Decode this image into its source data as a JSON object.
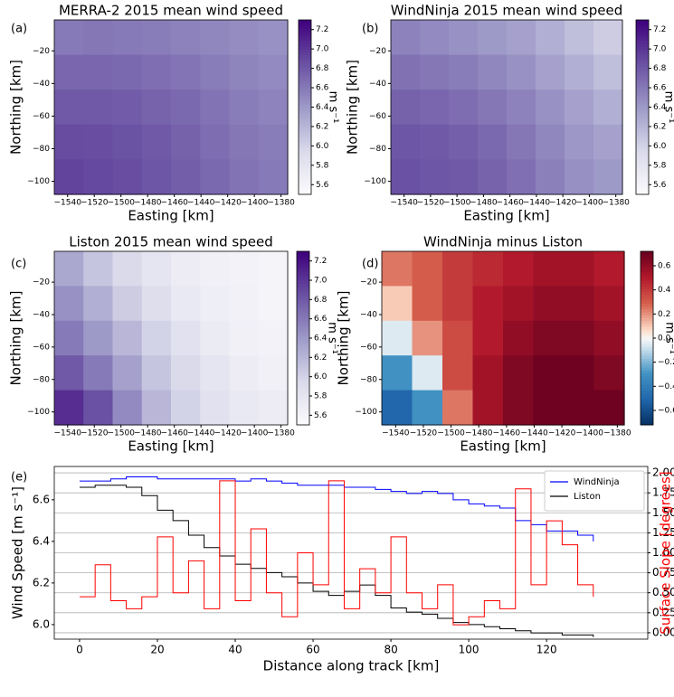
{
  "chart_data": [
    {
      "type": "heatmap",
      "panel_label": "(a)",
      "title": "MERRA-2 2015 mean wind speed",
      "x_label": "Easting [km]",
      "y_label": "Northing [km]",
      "xlim": [
        -1550,
        -1375
      ],
      "ylim": [
        -108,
        -1
      ],
      "xticks": [
        {
          "value": -1540,
          "label": "−1540"
        },
        {
          "value": -1520,
          "label": "−1520"
        },
        {
          "value": -1500,
          "label": "−1500"
        },
        {
          "value": -1480,
          "label": "−1480"
        },
        {
          "value": -1460,
          "label": "−1460"
        },
        {
          "value": -1440,
          "label": "−1440"
        },
        {
          "value": -1420,
          "label": "−1420"
        },
        {
          "value": -1400,
          "label": "−1400"
        },
        {
          "value": -1380,
          "label": "−1380"
        }
      ],
      "yticks": [
        {
          "value": -20,
          "label": "−20"
        },
        {
          "value": -40,
          "label": "−40"
        },
        {
          "value": -60,
          "label": "−60"
        },
        {
          "value": -80,
          "label": "−80"
        },
        {
          "value": -100,
          "label": "−100"
        }
      ],
      "colormap": "Purples",
      "zlim": [
        5.5,
        7.3
      ],
      "zticks": [
        5.6,
        5.8,
        {
          "value": 6,
          "label": "6.0"
        },
        6.2,
        6.4,
        6.6,
        6.8,
        {
          "value": 7,
          "label": "7.0"
        },
        7.2
      ],
      "colorbar_label": "m s⁻¹",
      "z": [
        [
          6.6,
          6.62,
          6.6,
          6.58,
          6.55,
          6.52,
          6.48,
          6.45
        ],
        [
          6.72,
          6.72,
          6.7,
          6.67,
          6.63,
          6.58,
          6.53,
          6.5
        ],
        [
          6.8,
          6.8,
          6.78,
          6.74,
          6.7,
          6.64,
          6.58,
          6.54
        ],
        [
          6.88,
          6.87,
          6.84,
          6.8,
          6.75,
          6.68,
          6.62,
          6.58
        ],
        [
          6.92,
          6.9,
          6.87,
          6.82,
          6.77,
          6.7,
          6.64,
          6.6
        ]
      ]
    },
    {
      "type": "heatmap",
      "panel_label": "(b)",
      "title": "WindNinja 2015 mean wind speed",
      "x_label": "Easting [km]",
      "y_label": "Northing [km]",
      "xlim": [
        -1550,
        -1375
      ],
      "ylim": [
        -108,
        -1
      ],
      "xticks": [
        {
          "value": -1540,
          "label": "−1540"
        },
        {
          "value": -1520,
          "label": "−1520"
        },
        {
          "value": -1500,
          "label": "−1500"
        },
        {
          "value": -1480,
          "label": "−1480"
        },
        {
          "value": -1460,
          "label": "−1460"
        },
        {
          "value": -1440,
          "label": "−1440"
        },
        {
          "value": -1420,
          "label": "−1420"
        },
        {
          "value": -1400,
          "label": "−1400"
        },
        {
          "value": -1380,
          "label": "−1380"
        }
      ],
      "yticks": [
        {
          "value": -20,
          "label": "−20"
        },
        {
          "value": -40,
          "label": "−40"
        },
        {
          "value": -60,
          "label": "−60"
        },
        {
          "value": -80,
          "label": "−80"
        },
        {
          "value": -100,
          "label": "−100"
        }
      ],
      "colormap": "Purples",
      "zlim": [
        5.5,
        7.3
      ],
      "zticks": [
        5.6,
        5.8,
        {
          "value": 6,
          "label": "6.0"
        },
        6.2,
        6.4,
        6.6,
        6.8,
        {
          "value": 7,
          "label": "7.0"
        },
        7.2
      ],
      "colorbar_label": "m s⁻¹",
      "z": [
        [
          6.55,
          6.5,
          6.45,
          6.4,
          6.35,
          6.25,
          6.15,
          6.05
        ],
        [
          6.65,
          6.62,
          6.58,
          6.52,
          6.45,
          6.35,
          6.25,
          6.15
        ],
        [
          6.75,
          6.72,
          6.68,
          6.62,
          6.55,
          6.45,
          6.35,
          6.25
        ],
        [
          6.82,
          6.8,
          6.76,
          6.7,
          6.62,
          6.52,
          6.42,
          6.35
        ],
        [
          6.85,
          6.82,
          6.8,
          6.74,
          6.66,
          6.56,
          6.46,
          6.4
        ]
      ]
    },
    {
      "type": "heatmap",
      "panel_label": "(c)",
      "title": "Liston 2015 mean wind speed",
      "x_label": "Easting [km]",
      "y_label": "Northing [km]",
      "xlim": [
        -1550,
        -1375
      ],
      "ylim": [
        -108,
        -1
      ],
      "xticks": [
        {
          "value": -1540,
          "label": "−1540"
        },
        {
          "value": -1520,
          "label": "−1520"
        },
        {
          "value": -1500,
          "label": "−1500"
        },
        {
          "value": -1480,
          "label": "−1480"
        },
        {
          "value": -1460,
          "label": "−1460"
        },
        {
          "value": -1440,
          "label": "−1440"
        },
        {
          "value": -1420,
          "label": "−1420"
        },
        {
          "value": -1400,
          "label": "−1400"
        },
        {
          "value": -1380,
          "label": "−1380"
        }
      ],
      "yticks": [
        {
          "value": -20,
          "label": "−20"
        },
        {
          "value": -40,
          "label": "−40"
        },
        {
          "value": -60,
          "label": "−60"
        },
        {
          "value": -80,
          "label": "−80"
        },
        {
          "value": -100,
          "label": "−100"
        }
      ],
      "colormap": "Purples",
      "zlim": [
        5.5,
        7.3
      ],
      "zticks": [
        5.6,
        5.8,
        {
          "value": 6,
          "label": "6.0"
        },
        6.2,
        6.4,
        6.6,
        6.8,
        {
          "value": 7,
          "label": "7.0"
        },
        7.2
      ],
      "colorbar_label": "m s⁻¹",
      "z": [
        [
          6.3,
          6.1,
          5.95,
          5.8,
          5.7,
          5.65,
          5.62,
          5.6
        ],
        [
          6.45,
          6.25,
          6.05,
          5.9,
          5.75,
          5.68,
          5.63,
          5.6
        ],
        [
          6.6,
          6.4,
          6.2,
          6.0,
          5.85,
          5.72,
          5.65,
          5.62
        ],
        [
          6.8,
          6.6,
          6.35,
          6.1,
          5.95,
          5.8,
          5.7,
          5.65
        ],
        [
          7.05,
          6.85,
          6.5,
          6.2,
          6.0,
          5.85,
          5.75,
          5.7
        ]
      ]
    },
    {
      "type": "heatmap",
      "panel_label": "(d)",
      "title": "WindNinja minus Liston",
      "x_label": "Easting [km]",
      "y_label": "Northing [km]",
      "xlim": [
        -1550,
        -1375
      ],
      "ylim": [
        -108,
        -1
      ],
      "xticks": [
        {
          "value": -1540,
          "label": "−1540"
        },
        {
          "value": -1520,
          "label": "−1520"
        },
        {
          "value": -1500,
          "label": "−1500"
        },
        {
          "value": -1480,
          "label": "−1480"
        },
        {
          "value": -1460,
          "label": "−1460"
        },
        {
          "value": -1440,
          "label": "−1440"
        },
        {
          "value": -1420,
          "label": "−1420"
        },
        {
          "value": -1400,
          "label": "−1400"
        },
        {
          "value": -1380,
          "label": "−1380"
        }
      ],
      "yticks": [
        {
          "value": -20,
          "label": "−20"
        },
        {
          "value": -40,
          "label": "−40"
        },
        {
          "value": -60,
          "label": "−60"
        },
        {
          "value": -80,
          "label": "−80"
        },
        {
          "value": -100,
          "label": "−100"
        }
      ],
      "colormap": "RdBu_r",
      "zlim": [
        -0.72,
        0.72
      ],
      "zticks": [
        {
          "value": -0.6,
          "label": "−0.6"
        },
        {
          "value": -0.4,
          "label": "−0.4"
        },
        {
          "value": -0.2,
          "label": "−0.2"
        },
        {
          "value": 0,
          "label": "0.0"
        },
        0.2,
        0.4,
        0.6
      ],
      "colorbar_label": "m s⁻¹",
      "z": [
        [
          0.25,
          0.3,
          0.4,
          0.45,
          0.5,
          0.55,
          0.55,
          0.5
        ],
        [
          0.1,
          0.3,
          0.4,
          0.5,
          0.55,
          0.6,
          0.6,
          0.55
        ],
        [
          -0.05,
          0.2,
          0.35,
          0.5,
          0.6,
          0.65,
          0.65,
          0.6
        ],
        [
          -0.3,
          -0.05,
          0.35,
          0.55,
          0.65,
          0.7,
          0.7,
          0.65
        ],
        [
          -0.5,
          -0.3,
          0.25,
          0.55,
          0.65,
          0.7,
          0.7,
          0.7
        ]
      ]
    },
    {
      "type": "line",
      "panel_label": "(e)",
      "x_label": "Distance along track [km]",
      "y_label": "Wind Speed [m s⁻¹]",
      "y2_label": "Surface Slope [degrees]",
      "step": true,
      "legend": "upper right",
      "grid": "y2",
      "xlim": [
        -6.5,
        146
      ],
      "xticks": [
        0,
        20,
        40,
        60,
        80,
        100,
        120
      ],
      "ylim": [
        5.93,
        6.76
      ],
      "yticks": [
        {
          "value": 6,
          "label": "6.0"
        },
        6.2,
        6.4,
        6.6
      ],
      "y2lim": [
        -0.08,
        2.08
      ],
      "y2ticks": [
        {
          "value": 0,
          "label": "0.00"
        },
        {
          "value": 0.25,
          "label": "0.25"
        },
        {
          "value": 0.5,
          "label": "0.50"
        },
        {
          "value": 0.75,
          "label": "0.75"
        },
        {
          "value": 1,
          "label": "1.00"
        },
        {
          "value": 1.25,
          "label": "1.25"
        },
        {
          "value": 1.5,
          "label": "1.50"
        },
        {
          "value": 1.75,
          "label": "1.75"
        },
        {
          "value": 2,
          "label": "2.00"
        }
      ],
      "x": [
        0,
        4,
        8,
        12,
        16,
        20,
        24,
        28,
        32,
        36,
        40,
        44,
        48,
        52,
        56,
        60,
        64,
        68,
        72,
        76,
        80,
        84,
        88,
        92,
        96,
        100,
        104,
        108,
        112,
        116,
        120,
        124,
        128,
        132
      ],
      "series": [
        {
          "name": "WindNinja",
          "color": "#0000ff",
          "values": [
            6.69,
            6.69,
            6.7,
            6.71,
            6.71,
            6.7,
            6.7,
            6.7,
            6.7,
            6.7,
            6.69,
            6.7,
            6.69,
            6.68,
            6.67,
            6.67,
            6.67,
            6.66,
            6.66,
            6.65,
            6.64,
            6.63,
            6.64,
            6.63,
            6.6,
            6.58,
            6.57,
            6.56,
            6.5,
            6.48,
            6.45,
            6.45,
            6.43,
            6.4
          ]
        },
        {
          "name": "Liston",
          "color": "#000000",
          "values": [
            6.66,
            6.67,
            6.67,
            6.66,
            6.62,
            6.55,
            6.5,
            6.43,
            6.37,
            6.33,
            6.29,
            6.27,
            6.25,
            6.23,
            6.2,
            6.16,
            6.14,
            6.16,
            6.19,
            6.14,
            6.08,
            6.06,
            6.05,
            6.03,
            6.01,
            6.0,
            5.99,
            5.98,
            5.97,
            5.96,
            5.96,
            5.95,
            5.95,
            5.94
          ]
        },
        {
          "name": "Surface Slope",
          "color": "#ff0000",
          "axis": "y2",
          "values": [
            0.45,
            0.85,
            0.4,
            0.3,
            0.45,
            1.2,
            0.5,
            0.9,
            0.3,
            1.9,
            0.4,
            1.3,
            0.5,
            0.2,
            1.0,
            0.6,
            1.9,
            0.3,
            0.8,
            0.5,
            1.2,
            0.5,
            0.3,
            0.6,
            0.1,
            0.2,
            0.4,
            0.3,
            1.8,
            0.6,
            1.4,
            1.1,
            0.6,
            0.45
          ]
        }
      ]
    }
  ]
}
